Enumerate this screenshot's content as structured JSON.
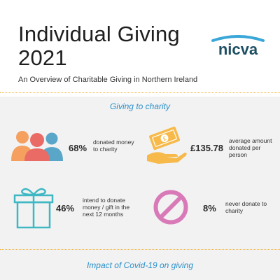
{
  "header": {
    "title_line1": "Individual Giving",
    "title_line2": "2021",
    "subtitle": "An Overview of Charitable Giving in Northern Ireland",
    "logo_text": "nicva"
  },
  "sections": {
    "giving": "Giving to charity",
    "covid": "Impact of Covid-19 on giving"
  },
  "stats": [
    {
      "icon": "people-icon",
      "value": "68%",
      "label_lines": [
        "donated money",
        "to charity"
      ]
    },
    {
      "icon": "money-hand-icon",
      "value": "£135.78",
      "label_lines": [
        "average amount",
        "donated per",
        "person"
      ]
    },
    {
      "icon": "gift-icon",
      "value": "46%",
      "label_lines": [
        "intend to donate",
        "money / gift in the",
        "next 12 months"
      ]
    },
    {
      "icon": "prohibited-icon",
      "value": "8%",
      "label_lines": [
        "never donate to",
        "charity"
      ]
    }
  ],
  "colors": {
    "divider": "#f2b23c",
    "section_title": "#2a8fc9",
    "panel_bg": "#f2f2f2",
    "logo_text": "#1d4f63",
    "logo_arc": "#3aa7d8",
    "people_orange": "#f5a05f",
    "people_coral": "#ea6b66",
    "people_blue": "#5aa6c8",
    "money_yellow": "#f6b94a",
    "gift_teal": "#3fb8c4",
    "prohibited_pink": "#d97ab8"
  }
}
